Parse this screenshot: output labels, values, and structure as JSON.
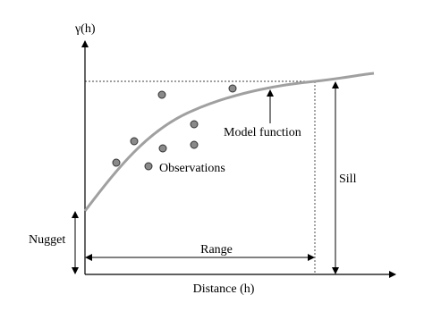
{
  "axes": {
    "y_label": "γ(h)",
    "x_label": "Distance (h)"
  },
  "labels": {
    "model": "Model function",
    "observations": "Observations",
    "sill": "Sill",
    "nugget": "Nugget",
    "range": "Range"
  }
}
